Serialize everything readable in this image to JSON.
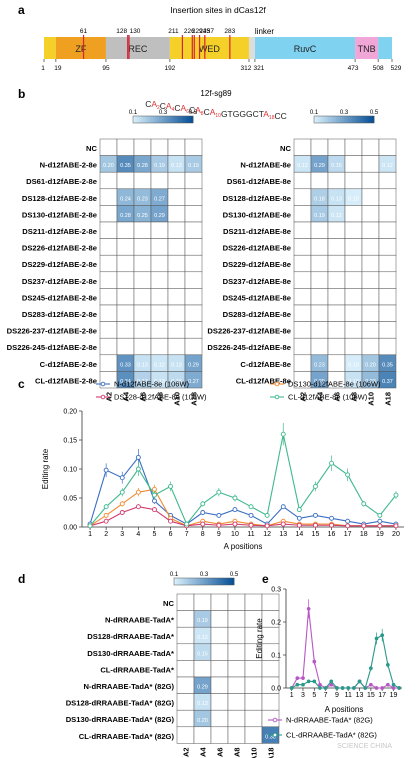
{
  "panel_labels": {
    "a": "a",
    "b": "b",
    "c": "c",
    "d": "d",
    "e": "e"
  },
  "panel_a": {
    "title": "Insertion sites in dCas12f",
    "domains": [
      {
        "name": "",
        "start": 1,
        "end": 19,
        "color": "#f5d028"
      },
      {
        "name": "ZF",
        "start": 19,
        "end": 95,
        "color": "#f0a020"
      },
      {
        "name": "REC",
        "start": 95,
        "end": 192,
        "color": "#bfbfbf"
      },
      {
        "name": "WED",
        "start": 192,
        "end": 312,
        "color": "#f5d028"
      },
      {
        "name": "",
        "start": 312,
        "end": 321,
        "color": "#dddddd"
      },
      {
        "name": "RuvC",
        "start": 321,
        "end": 473,
        "color": "#7fd2f0"
      },
      {
        "name": "TNB",
        "start": 473,
        "end": 508,
        "color": "#f0a6d6"
      },
      {
        "name": "",
        "start": 508,
        "end": 529,
        "color": "#7fd2f0"
      }
    ],
    "linker_label": "linker",
    "linker_pos": 318,
    "sites": [
      61,
      128,
      130,
      211,
      226,
      229,
      237,
      245,
      283
    ],
    "site_labels": [
      "61",
      "128",
      "130",
      "211",
      "226",
      "229",
      "237",
      "245",
      "283"
    ],
    "ticks": [
      1,
      19,
      95,
      192,
      312,
      321,
      473,
      508,
      529
    ],
    "tick_labels": [
      "1",
      "19",
      "95",
      "192",
      "312",
      "321",
      "473",
      "508",
      "529"
    ]
  },
  "panel_b": {
    "sg_name": "12f-sg89",
    "sequence": [
      {
        "t": "C",
        "c": "#222"
      },
      {
        "t": "A",
        "c": "#d33"
      },
      {
        "t": "2",
        "c": "#d33",
        "sub": true
      },
      {
        "t": "C",
        "c": "#222"
      },
      {
        "t": "A",
        "c": "#d33"
      },
      {
        "t": "4",
        "c": "#d33",
        "sub": true
      },
      {
        "t": "C",
        "c": "#222"
      },
      {
        "t": "A",
        "c": "#d33"
      },
      {
        "t": "6",
        "c": "#d33",
        "sub": true
      },
      {
        "t": "C",
        "c": "#222"
      },
      {
        "t": "A",
        "c": "#d33"
      },
      {
        "t": "8",
        "c": "#d33",
        "sub": true
      },
      {
        "t": "C",
        "c": "#222"
      },
      {
        "t": "A",
        "c": "#d33"
      },
      {
        "t": "10",
        "c": "#d33",
        "sub": true
      },
      {
        "t": "GTGGGCT",
        "c": "#222"
      },
      {
        "t": "A",
        "c": "#d33"
      },
      {
        "t": "18",
        "c": "#d33",
        "sub": true
      },
      {
        "t": "CC",
        "c": "#222"
      }
    ],
    "colorbar_ticks": [
      "0.1",
      "0.3",
      "0.5"
    ],
    "cols": [
      "A2",
      "A4",
      "A6",
      "A8",
      "A10",
      "A18"
    ]
  },
  "chart_data": [
    {
      "type": "heatmap",
      "panel": "b-left",
      "scale": [
        0.1,
        0.5
      ],
      "x_categories": [
        "A2",
        "A4",
        "A6",
        "A8",
        "A10",
        "A18"
      ],
      "y_categories": [
        "NC",
        "N-d12fABE-2-8e",
        "DS61-d12fABE-2-8e",
        "DS128-d12fABE-2-8e",
        "DS130-d12fABE-2-8e",
        "DS211-d12fABE-2-8e",
        "DS226-d12fABE-2-8e",
        "DS229-d12fABE-2-8e",
        "DS237-d12fABE-2-8e",
        "DS245-d12fABE-2-8e",
        "DS283-d12fABE-2-8e",
        "DS226-237-d12fABE-2-8e",
        "DS226-245-d12fABE-2-8e",
        "C-d12fABE-2-8e",
        "CL-d12fABE-2-8e"
      ],
      "values": [
        [
          null,
          null,
          null,
          null,
          null,
          null
        ],
        [
          0.2,
          0.35,
          0.28,
          0.19,
          0.13,
          0.19
        ],
        [
          null,
          null,
          null,
          null,
          null,
          null
        ],
        [
          null,
          0.24,
          0.23,
          0.27,
          null,
          null
        ],
        [
          null,
          0.28,
          0.25,
          0.29,
          null,
          null
        ],
        [
          null,
          null,
          null,
          null,
          null,
          null
        ],
        [
          null,
          null,
          null,
          null,
          null,
          null
        ],
        [
          null,
          null,
          null,
          null,
          null,
          null
        ],
        [
          null,
          null,
          null,
          null,
          null,
          null
        ],
        [
          null,
          null,
          null,
          null,
          null,
          null
        ],
        [
          null,
          null,
          null,
          null,
          null,
          null
        ],
        [
          null,
          null,
          null,
          null,
          null,
          null
        ],
        [
          null,
          null,
          null,
          null,
          null,
          null
        ],
        [
          null,
          0.33,
          0.13,
          0.12,
          0.13,
          0.29
        ],
        [
          null,
          0.34,
          0.17,
          0.13,
          0.15,
          0.27
        ]
      ]
    },
    {
      "type": "heatmap",
      "panel": "b-right",
      "scale": [
        0.1,
        0.5
      ],
      "x_categories": [
        "A2",
        "A4",
        "A6",
        "A8",
        "A10",
        "A18"
      ],
      "y_categories": [
        "NC",
        "N-d12fABE-8e",
        "DS61-d12fABE-8e",
        "DS128-d12fABE-8e",
        "DS130-d12fABE-8e",
        "DS211-d12fABE-8e",
        "DS226-d12fABE-8e",
        "DS229-d12fABE-8e",
        "DS237-d12fABE-8e",
        "DS245-d12fABE-8e",
        "DS283-d12fABE-8e",
        "DS226-237-d12fABE-8e",
        "DS226-245-d12fABE-8e",
        "C-d12fABE-8e",
        "CL-d12fABE-8e"
      ],
      "values": [
        [
          null,
          null,
          null,
          null,
          null,
          null
        ],
        [
          0.12,
          0.29,
          0.15,
          null,
          null,
          0.12
        ],
        [
          null,
          null,
          null,
          null,
          null,
          null
        ],
        [
          null,
          0.18,
          0.13,
          0.1,
          null,
          null
        ],
        [
          null,
          0.19,
          0.12,
          null,
          null,
          null
        ],
        [
          null,
          null,
          null,
          null,
          null,
          null
        ],
        [
          null,
          null,
          null,
          null,
          null,
          null
        ],
        [
          null,
          null,
          null,
          null,
          null,
          null
        ],
        [
          null,
          null,
          null,
          null,
          null,
          null
        ],
        [
          null,
          null,
          null,
          null,
          null,
          null
        ],
        [
          null,
          null,
          null,
          null,
          null,
          null
        ],
        [
          null,
          null,
          null,
          null,
          null,
          null
        ],
        [
          null,
          null,
          null,
          null,
          null,
          null
        ],
        [
          null,
          0.23,
          null,
          0.1,
          0.2,
          0.35
        ],
        [
          null,
          0.29,
          null,
          0.13,
          0.23,
          0.37
        ]
      ]
    },
    {
      "type": "line",
      "panel": "c",
      "xlabel": "A positions",
      "ylabel": "Editing rate",
      "x": [
        1,
        2,
        3,
        4,
        5,
        6,
        7,
        8,
        9,
        10,
        11,
        12,
        13,
        14,
        15,
        16,
        17,
        18,
        19,
        20
      ],
      "ylim": [
        0,
        0.2
      ],
      "yticks": [
        "0.00",
        "0.05",
        "0.10",
        "0.15",
        "0.20"
      ],
      "series": [
        {
          "name": "N-d12fABE-8e (106W)",
          "color": "#3a6fc4",
          "values": [
            0.005,
            0.098,
            0.085,
            0.12,
            0.045,
            0.02,
            0.005,
            0.025,
            0.02,
            0.03,
            0.02,
            0.005,
            0.035,
            0.015,
            0.02,
            0.015,
            0.01,
            0.005,
            0.01,
            0.005
          ]
        },
        {
          "name": "DS130-d12fABE-8e (106W)",
          "color": "#f08a30",
          "values": [
            0.002,
            0.02,
            0.04,
            0.06,
            0.065,
            0.015,
            0.002,
            0.01,
            0.005,
            0.01,
            0.005,
            0.002,
            0.01,
            0.005,
            0.005,
            0.005,
            0.002,
            0.002,
            0.002,
            0.002
          ]
        },
        {
          "name": "DS128-d12fABE-8e (106W)",
          "color": "#d23b6b",
          "values": [
            0.002,
            0.01,
            0.025,
            0.035,
            0.03,
            0.01,
            0.002,
            0.005,
            0.003,
            0.005,
            0.003,
            0.002,
            0.005,
            0.003,
            0.003,
            0.003,
            0.002,
            0.002,
            0.002,
            0.002
          ]
        },
        {
          "name": "CL-d12fABE-8e (106W)",
          "color": "#3fb98c",
          "values": [
            0.002,
            0.035,
            0.06,
            0.1,
            0.055,
            0.07,
            0.005,
            0.04,
            0.06,
            0.05,
            0.035,
            0.02,
            0.16,
            0.03,
            0.07,
            0.11,
            0.09,
            0.04,
            0.02,
            0.055
          ]
        }
      ]
    },
    {
      "type": "heatmap",
      "panel": "d",
      "scale": [
        0.1,
        0.5
      ],
      "x_categories": [
        "A2",
        "A4",
        "A6",
        "A8",
        "A10",
        "A18"
      ],
      "y_categories": [
        "NC",
        "N-dRRAABE-TadA*",
        "DS128-dRRAABE-TadA*",
        "DS130-dRRAABE-TadA*",
        "CL-dRRAABE-TadA*",
        "N-dRRAABE-TadA* (82G)",
        "DS128-dRRAABE-TadA* (82G)",
        "DS130-dRRAABE-TadA* (82G)",
        "CL-dRRAABE-TadA* (82G)"
      ],
      "values": [
        [
          null,
          null,
          null,
          null,
          null,
          null
        ],
        [
          null,
          0.19,
          null,
          null,
          null,
          null
        ],
        [
          null,
          0.12,
          null,
          null,
          null,
          null
        ],
        [
          null,
          0.15,
          null,
          null,
          null,
          null
        ],
        [
          null,
          null,
          null,
          null,
          null,
          null
        ],
        [
          null,
          0.29,
          null,
          null,
          null,
          null
        ],
        [
          null,
          0.13,
          null,
          null,
          null,
          null
        ],
        [
          null,
          0.2,
          null,
          null,
          null,
          null
        ],
        [
          null,
          null,
          null,
          null,
          null,
          0.38
        ]
      ]
    },
    {
      "type": "line",
      "panel": "e",
      "xlabel": "A positions",
      "ylabel": "Editing rate",
      "x": [
        1,
        2,
        3,
        4,
        5,
        6,
        7,
        8,
        9,
        10,
        11,
        12,
        13,
        14,
        15,
        16,
        17,
        18,
        19,
        20
      ],
      "xticks": [
        "1",
        "3",
        "5",
        "7",
        "9",
        "11",
        "13",
        "15",
        "17",
        "19"
      ],
      "ylim": [
        0,
        0.3
      ],
      "yticks": [
        "0.0",
        "0.1",
        "0.2",
        "0.3"
      ],
      "series": [
        {
          "name": "N-dRRAABE-TadA* (82G)",
          "color": "#b857c6",
          "values": [
            0.0,
            0.03,
            0.03,
            0.24,
            0.08,
            0.01,
            0.0,
            0.01,
            0.0,
            0.0,
            0.0,
            0.0,
            0.02,
            0.0,
            0.01,
            0.0,
            0.0,
            0.01,
            0.0,
            0.0
          ]
        },
        {
          "name": "CL-dRRAABE-TadA* (82G)",
          "color": "#2a9a8a",
          "values": [
            0.0,
            0.01,
            0.01,
            0.02,
            0.02,
            0.0,
            0.0,
            0.02,
            0.0,
            0.0,
            0.0,
            0.0,
            0.02,
            0.0,
            0.06,
            0.15,
            0.16,
            0.07,
            0.01,
            0.0
          ]
        }
      ]
    }
  ],
  "watermark": "SCIENCE CHINA"
}
